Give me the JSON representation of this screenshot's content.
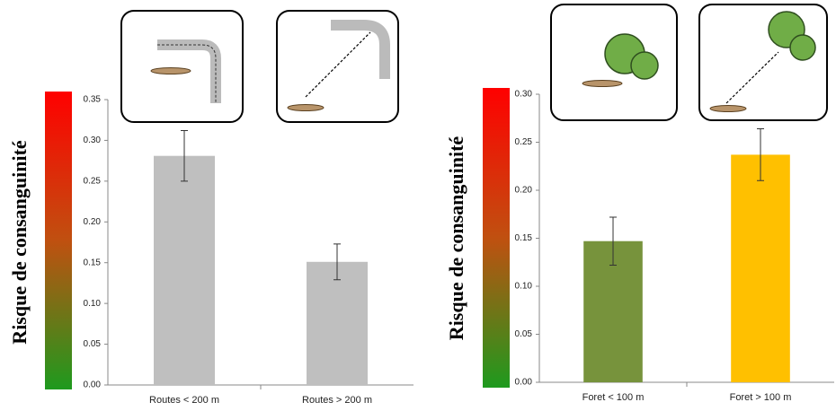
{
  "chart_data": [
    {
      "type": "bar",
      "y_label": "Risque de consanguinité",
      "categories": [
        "Routes < 200 m",
        "Routes > 200 m"
      ],
      "values": [
        0.281,
        0.151
      ],
      "errors": [
        0.031,
        0.022
      ],
      "colors": [
        "#bfbfbf",
        "#bfbfbf"
      ],
      "ylim": [
        0,
        0.35
      ],
      "yticks": [
        {
          "value": 0,
          "label": "0.00"
        },
        {
          "value": 0.05,
          "label": "0.05"
        },
        {
          "value": 0.1,
          "label": "0.10"
        },
        {
          "value": 0.15,
          "label": "0.15"
        },
        {
          "value": 0.2,
          "label": "0.20"
        },
        {
          "value": 0.25,
          "label": "0.25"
        },
        {
          "value": 0.3,
          "label": "0.30"
        },
        {
          "value": 0.35,
          "label": "0.35"
        }
      ]
    },
    {
      "type": "bar",
      "y_label": "Risque de consanguinité",
      "categories": [
        "Foret < 100 m",
        "Foret > 100 m"
      ],
      "values": [
        0.147,
        0.237
      ],
      "errors": [
        0.025,
        0.027
      ],
      "colors": [
        "#77933c",
        "#ffc000"
      ],
      "ylim": [
        0,
        0.3
      ],
      "yticks": [
        {
          "value": 0,
          "label": "0.00"
        },
        {
          "value": 0.05,
          "label": "0.05"
        },
        {
          "value": 0.1,
          "label": "0.10"
        },
        {
          "value": 0.15,
          "label": "0.15"
        },
        {
          "value": 0.2,
          "label": "0.20"
        },
        {
          "value": 0.25,
          "label": "0.25"
        },
        {
          "value": 0.3,
          "label": "0.30"
        }
      ]
    }
  ]
}
